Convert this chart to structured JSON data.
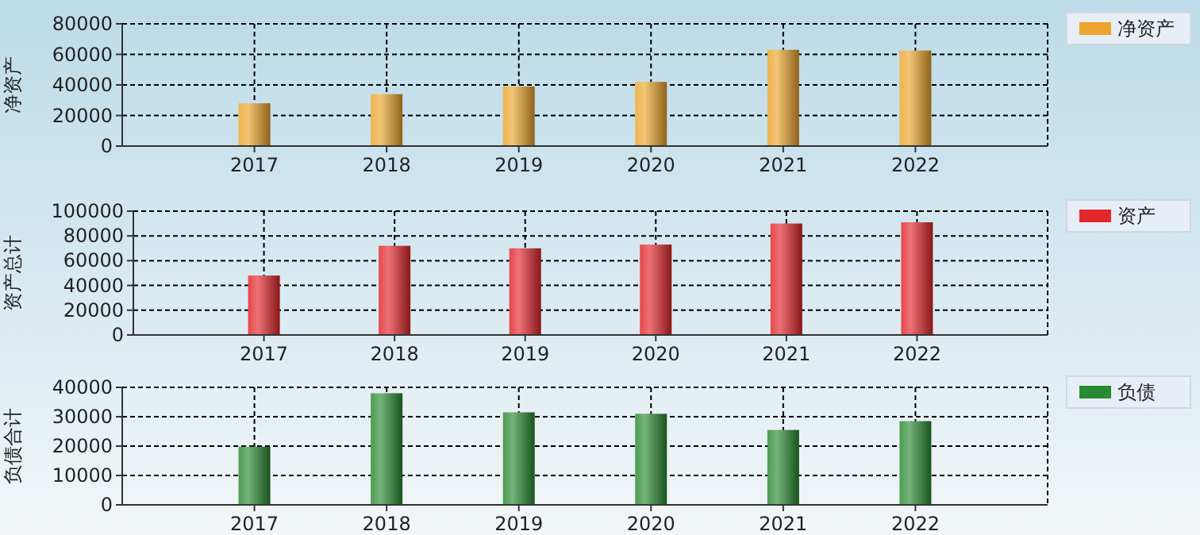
{
  "chart_data": [
    {
      "type": "bar",
      "ylabel": "净资产",
      "categories": [
        "2017",
        "2018",
        "2019",
        "2020",
        "2021",
        "2022"
      ],
      "series": [
        {
          "name": "净资产",
          "color": "#eca52c",
          "values": [
            28000,
            34000,
            39000,
            42000,
            63000,
            62500
          ]
        }
      ],
      "ylim": [
        0,
        80000
      ],
      "yticks": [
        0,
        20000,
        40000,
        60000,
        80000
      ],
      "grid": true,
      "legend": "top right"
    },
    {
      "type": "bar",
      "ylabel": "资产总计",
      "categories": [
        "2017",
        "2018",
        "2019",
        "2020",
        "2021",
        "2022"
      ],
      "series": [
        {
          "name": "资产",
          "color": "#e3262c",
          "values": [
            48000,
            72000,
            70000,
            73000,
            90000,
            91000
          ]
        }
      ],
      "ylim": [
        0,
        100000
      ],
      "yticks": [
        0,
        20000,
        40000,
        60000,
        80000,
        100000
      ],
      "grid": true,
      "legend": "top right"
    },
    {
      "type": "bar",
      "ylabel": "负债合计",
      "categories": [
        "2017",
        "2018",
        "2019",
        "2020",
        "2021",
        "2022"
      ],
      "series": [
        {
          "name": "负债",
          "color": "#2a8a32",
          "values": [
            19800,
            38000,
            31500,
            31000,
            25500,
            28500
          ]
        }
      ],
      "ylim": [
        0,
        40000
      ],
      "yticks": [
        0,
        10000,
        20000,
        30000,
        40000
      ],
      "grid": true,
      "legend": "top right"
    }
  ]
}
